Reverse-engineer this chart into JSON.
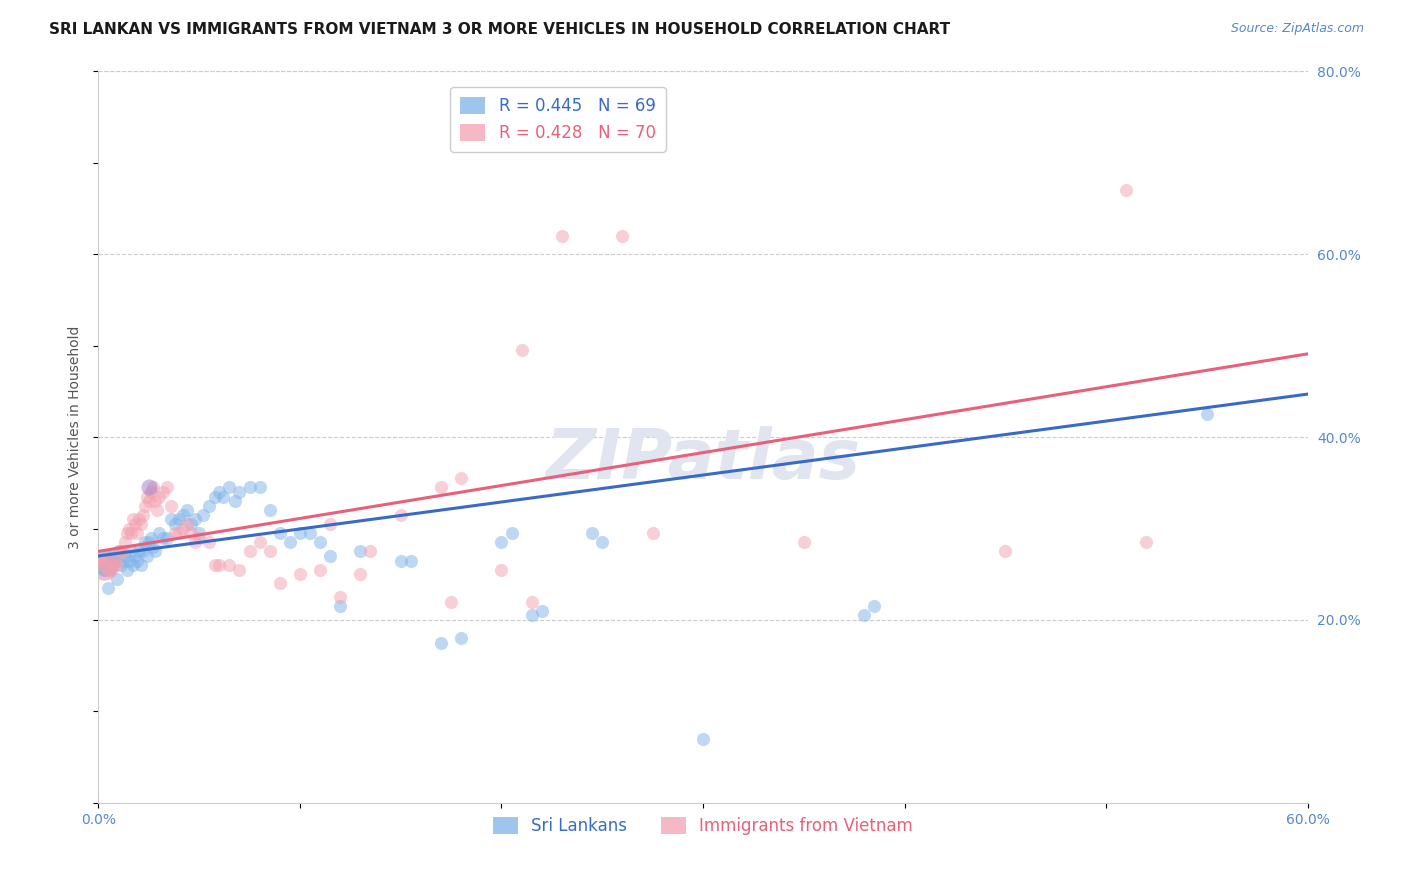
{
  "title": "SRI LANKAN VS IMMIGRANTS FROM VIETNAM 3 OR MORE VEHICLES IN HOUSEHOLD CORRELATION CHART",
  "source": "Source: ZipAtlas.com",
  "ylabel": "3 or more Vehicles in Household",
  "xmin": 0.0,
  "xmax": 0.6,
  "ymin": 0.0,
  "ymax": 0.8,
  "x_ticks": [
    0.0,
    0.1,
    0.2,
    0.3,
    0.4,
    0.5,
    0.6
  ],
  "x_tick_labels": [
    "0.0%",
    "",
    "",
    "",
    "",
    "",
    "60.0%"
  ],
  "y_ticks_right": [
    0.2,
    0.4,
    0.6,
    0.8
  ],
  "y_tick_labels_right": [
    "20.0%",
    "40.0%",
    "60.0%",
    "80.0%"
  ],
  "color_blue": "#7EB3E8",
  "color_pink": "#F4A0B0",
  "color_blue_dark": "#3A6BC4",
  "color_pink_dark": "#E8607A",
  "color_purple": "#9B7EC8",
  "watermark": "ZIPatlas",
  "scatter_blue": [
    [
      0.003,
      0.255
    ],
    [
      0.005,
      0.235
    ],
    [
      0.006,
      0.26
    ],
    [
      0.007,
      0.27
    ],
    [
      0.008,
      0.265
    ],
    [
      0.009,
      0.245
    ],
    [
      0.01,
      0.275
    ],
    [
      0.011,
      0.26
    ],
    [
      0.012,
      0.265
    ],
    [
      0.013,
      0.27
    ],
    [
      0.014,
      0.255
    ],
    [
      0.015,
      0.265
    ],
    [
      0.016,
      0.275
    ],
    [
      0.017,
      0.26
    ],
    [
      0.018,
      0.27
    ],
    [
      0.019,
      0.265
    ],
    [
      0.02,
      0.275
    ],
    [
      0.021,
      0.26
    ],
    [
      0.022,
      0.275
    ],
    [
      0.023,
      0.285
    ],
    [
      0.024,
      0.27
    ],
    [
      0.025,
      0.285
    ],
    [
      0.026,
      0.29
    ],
    [
      0.027,
      0.28
    ],
    [
      0.028,
      0.275
    ],
    [
      0.03,
      0.295
    ],
    [
      0.032,
      0.29
    ],
    [
      0.034,
      0.29
    ],
    [
      0.036,
      0.31
    ],
    [
      0.038,
      0.305
    ],
    [
      0.04,
      0.31
    ],
    [
      0.042,
      0.315
    ],
    [
      0.044,
      0.32
    ],
    [
      0.046,
      0.305
    ],
    [
      0.048,
      0.31
    ],
    [
      0.05,
      0.295
    ],
    [
      0.052,
      0.315
    ],
    [
      0.055,
      0.325
    ],
    [
      0.058,
      0.335
    ],
    [
      0.06,
      0.34
    ],
    [
      0.062,
      0.335
    ],
    [
      0.065,
      0.345
    ],
    [
      0.068,
      0.33
    ],
    [
      0.07,
      0.34
    ],
    [
      0.075,
      0.345
    ],
    [
      0.08,
      0.345
    ],
    [
      0.085,
      0.32
    ],
    [
      0.09,
      0.295
    ],
    [
      0.095,
      0.285
    ],
    [
      0.1,
      0.295
    ],
    [
      0.105,
      0.295
    ],
    [
      0.11,
      0.285
    ],
    [
      0.115,
      0.27
    ],
    [
      0.12,
      0.215
    ],
    [
      0.13,
      0.275
    ],
    [
      0.15,
      0.265
    ],
    [
      0.155,
      0.265
    ],
    [
      0.17,
      0.175
    ],
    [
      0.18,
      0.18
    ],
    [
      0.2,
      0.285
    ],
    [
      0.205,
      0.295
    ],
    [
      0.215,
      0.205
    ],
    [
      0.22,
      0.21
    ],
    [
      0.245,
      0.295
    ],
    [
      0.25,
      0.285
    ],
    [
      0.3,
      0.07
    ],
    [
      0.38,
      0.205
    ],
    [
      0.385,
      0.215
    ],
    [
      0.55,
      0.425
    ]
  ],
  "scatter_pink": [
    [
      0.002,
      0.265
    ],
    [
      0.003,
      0.26
    ],
    [
      0.004,
      0.265
    ],
    [
      0.005,
      0.255
    ],
    [
      0.006,
      0.255
    ],
    [
      0.007,
      0.26
    ],
    [
      0.008,
      0.265
    ],
    [
      0.009,
      0.26
    ],
    [
      0.01,
      0.275
    ],
    [
      0.011,
      0.275
    ],
    [
      0.012,
      0.275
    ],
    [
      0.013,
      0.285
    ],
    [
      0.014,
      0.295
    ],
    [
      0.015,
      0.3
    ],
    [
      0.016,
      0.295
    ],
    [
      0.017,
      0.31
    ],
    [
      0.018,
      0.305
    ],
    [
      0.019,
      0.295
    ],
    [
      0.02,
      0.31
    ],
    [
      0.021,
      0.305
    ],
    [
      0.022,
      0.315
    ],
    [
      0.023,
      0.325
    ],
    [
      0.024,
      0.335
    ],
    [
      0.025,
      0.33
    ],
    [
      0.026,
      0.34
    ],
    [
      0.027,
      0.345
    ],
    [
      0.028,
      0.33
    ],
    [
      0.029,
      0.32
    ],
    [
      0.03,
      0.335
    ],
    [
      0.032,
      0.34
    ],
    [
      0.034,
      0.345
    ],
    [
      0.036,
      0.325
    ],
    [
      0.038,
      0.295
    ],
    [
      0.04,
      0.295
    ],
    [
      0.042,
      0.3
    ],
    [
      0.044,
      0.305
    ],
    [
      0.046,
      0.295
    ],
    [
      0.048,
      0.285
    ],
    [
      0.05,
      0.29
    ],
    [
      0.055,
      0.285
    ],
    [
      0.058,
      0.26
    ],
    [
      0.06,
      0.26
    ],
    [
      0.065,
      0.26
    ],
    [
      0.07,
      0.255
    ],
    [
      0.075,
      0.275
    ],
    [
      0.08,
      0.285
    ],
    [
      0.085,
      0.275
    ],
    [
      0.09,
      0.24
    ],
    [
      0.1,
      0.25
    ],
    [
      0.11,
      0.255
    ],
    [
      0.115,
      0.305
    ],
    [
      0.12,
      0.225
    ],
    [
      0.13,
      0.25
    ],
    [
      0.135,
      0.275
    ],
    [
      0.15,
      0.315
    ],
    [
      0.17,
      0.345
    ],
    [
      0.175,
      0.22
    ],
    [
      0.18,
      0.355
    ],
    [
      0.2,
      0.255
    ],
    [
      0.21,
      0.495
    ],
    [
      0.215,
      0.22
    ],
    [
      0.23,
      0.62
    ],
    [
      0.26,
      0.62
    ],
    [
      0.275,
      0.295
    ],
    [
      0.35,
      0.285
    ],
    [
      0.45,
      0.275
    ],
    [
      0.51,
      0.67
    ],
    [
      0.52,
      0.285
    ]
  ],
  "scatter_purple": [
    [
      0.025,
      0.345
    ]
  ],
  "title_fontsize": 11,
  "axis_label_fontsize": 10,
  "tick_label_fontsize": 10,
  "legend_fontsize": 12,
  "watermark_fontsize": 50,
  "watermark_color": "#E0E5F0",
  "background_color": "#FFFFFF",
  "scatter_alpha": 0.5,
  "scatter_size": 90,
  "line_blue_intercept": 0.27,
  "line_blue_slope": 0.295,
  "line_pink_intercept": 0.275,
  "line_pink_slope": 0.36,
  "grid_color": "#CCCCCC",
  "axis_color": "#5588CC"
}
